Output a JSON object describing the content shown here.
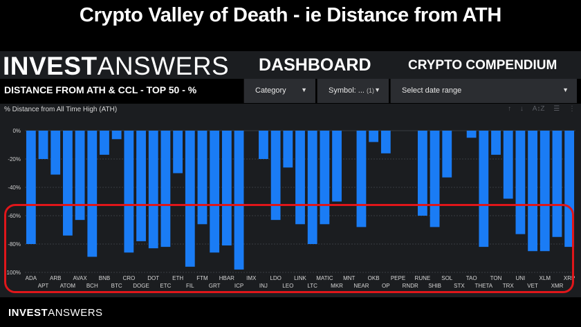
{
  "banner": {
    "title": "Crypto Valley of Death - ie Distance from ATH"
  },
  "header": {
    "brand_bold": "INVEST",
    "brand_light": "ANSWERS",
    "dashboard": "DASHBOARD",
    "compendium": "CRYPTO COMPENDIUM"
  },
  "filters": {
    "page_subtitle": "DISTANCE FROM ATH & CCL - TOP 50 - %",
    "category": "Category",
    "symbol": "Symbol: ...",
    "symbol_count": "(1)",
    "date_range": "Select date range"
  },
  "toolbar_icons": [
    "sort-up-icon",
    "sort-down-icon",
    "sort-az-icon",
    "filter-icon",
    "more-icon"
  ],
  "footer": {
    "brand_bold": "INVEST",
    "brand_light": "ANSWERS"
  },
  "colors": {
    "bar": "#1a7cf5",
    "highlight": "#e0161a",
    "panel": "#1b1d20",
    "grid": "#3a3d42"
  },
  "chart_data": {
    "type": "bar",
    "title": "% Distance from All Time High (ATH)",
    "categories": [
      "ADA",
      "APT",
      "ARB",
      "ATOM",
      "AVAX",
      "BCH",
      "BNB",
      "BTC",
      "CRO",
      "DOGE",
      "DOT",
      "ETC",
      "ETH",
      "FIL",
      "FTM",
      "GRT",
      "HBAR",
      "ICP",
      "IMX",
      "INJ",
      "LDO",
      "LEO",
      "LINK",
      "LTC",
      "MATIC",
      "MKR",
      "MNT",
      "NEAR",
      "OKB",
      "OP",
      "PEPE",
      "RNDR",
      "RUNE",
      "SHIB",
      "SOL",
      "STX",
      "TAO",
      "THETA",
      "TON",
      "TRX",
      "UNI",
      "VET",
      "XLM",
      "XMR",
      "XRP"
    ],
    "values": [
      -80,
      -20,
      -31,
      -74,
      -63,
      -89,
      -17,
      -6,
      -86,
      -78,
      -83,
      -82,
      -30,
      -96,
      -66,
      -86,
      -81,
      -98,
      0,
      -20,
      -63,
      -26,
      -66,
      -80,
      -66,
      -50,
      0,
      -68,
      -8,
      -16,
      0,
      0,
      -60,
      -68,
      -33,
      0,
      -5,
      -82,
      -17,
      -48,
      -73,
      -85,
      -85,
      -75,
      -82
    ],
    "yticks": [
      "0%",
      "-20%",
      "-40%",
      "-60%",
      "-80%",
      "-100%"
    ],
    "ylim": [
      -100,
      0
    ],
    "grid": true
  }
}
